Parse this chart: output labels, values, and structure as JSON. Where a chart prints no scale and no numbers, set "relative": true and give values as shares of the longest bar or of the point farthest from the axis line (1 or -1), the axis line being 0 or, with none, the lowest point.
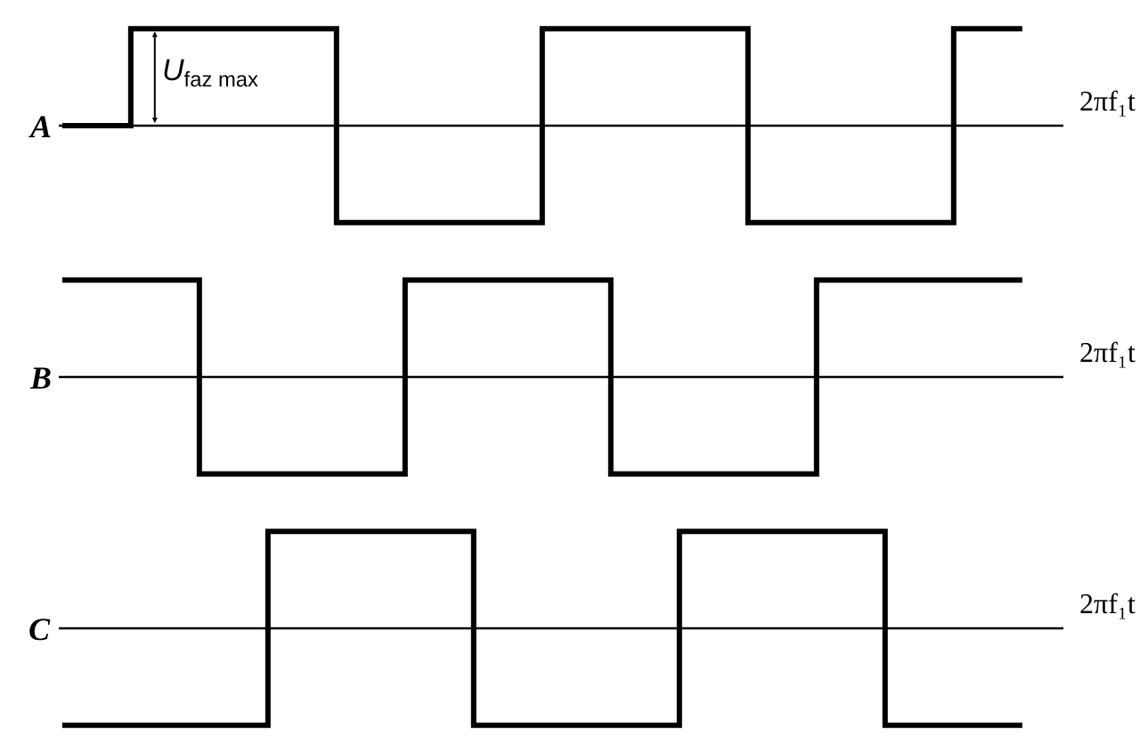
{
  "chart_data": [
    {
      "type": "step",
      "relative": true,
      "ylabel": "A",
      "xlabel": "2πf₁t",
      "color": "#000000",
      "annotations": [
        "U$_{faz max}$"
      ],
      "categories": [
        null,
        null,
        null,
        null,
        null,
        null,
        null,
        null,
        null,
        null,
        null,
        null,
        null,
        null,
        null
      ],
      "values": [
        0,
        1,
        1,
        1,
        -1,
        -1,
        -1,
        1,
        1,
        1,
        -1,
        -1,
        -1,
        1,
        1
      ]
    },
    {
      "type": "step",
      "relative": true,
      "ylabel": "B",
      "xlabel": "2πf₁t",
      "color": "#000000",
      "categories": [
        null,
        null,
        null,
        null,
        null,
        null,
        null,
        null,
        null,
        null,
        null,
        null,
        null,
        null,
        null
      ],
      "values": [
        1,
        1,
        -1,
        -1,
        -1,
        1,
        1,
        1,
        -1,
        -1,
        -1,
        1,
        1,
        1,
        1
      ]
    },
    {
      "type": "step",
      "relative": true,
      "ylabel": "C",
      "xlabel": "2πf₁t",
      "color": "#000000",
      "categories": [
        null,
        null,
        null,
        null,
        null,
        null,
        null,
        null,
        null,
        null,
        null,
        null,
        null,
        null,
        null
      ],
      "values": [
        -1,
        -1,
        -1,
        1,
        1,
        1,
        -1,
        -1,
        -1,
        1,
        1,
        1,
        -1,
        -1,
        -1
      ]
    }
  ]
}
